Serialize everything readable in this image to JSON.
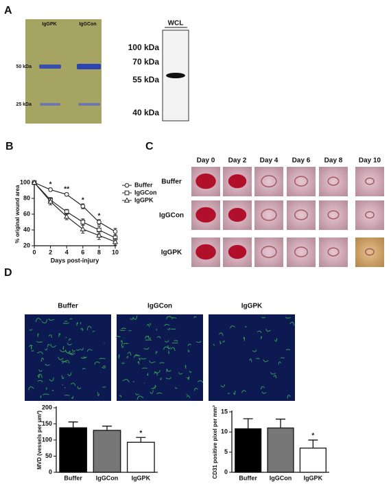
{
  "panels": {
    "a": "A",
    "b": "B",
    "c": "C",
    "d": "D"
  },
  "gel": {
    "lanes": [
      "IgGPK",
      "IgGCon"
    ],
    "markers": [
      "50 kDa",
      "25 kDa"
    ]
  },
  "blot": {
    "lane": "WCL",
    "markers": [
      "100 kDa",
      "70 kDa",
      "55 kDa",
      "40 kDa"
    ]
  },
  "photos": {
    "columns": [
      "Day 0",
      "Day 2",
      "Day 4",
      "Day 6",
      "Day 8",
      "Day 10"
    ],
    "rows": [
      "Buffer",
      "IgGCon",
      "IgGPK"
    ]
  },
  "micrographs": {
    "titles": [
      "Buffer",
      "IgGCon",
      "IgGPK"
    ]
  },
  "chart_data": [
    {
      "type": "line",
      "ylabel": "% original wound area",
      "xlabel": "Days post-injury",
      "x": [
        0,
        2,
        4,
        6,
        8,
        10
      ],
      "xlim": [
        0,
        10
      ],
      "xticks": [
        0,
        2,
        4,
        6,
        8,
        10
      ],
      "ylim": [
        20,
        100
      ],
      "yticks": [
        20,
        40,
        60,
        80,
        100
      ],
      "series": [
        {
          "name": "Buffer",
          "color": "#222222",
          "marker": "circle",
          "values": [
            100,
            91,
            85,
            70,
            50,
            38
          ],
          "errors": [
            1,
            2,
            2,
            3,
            3,
            4
          ]
        },
        {
          "name": "IgGCon",
          "color": "#222222",
          "marker": "square",
          "values": [
            100,
            78,
            63,
            50,
            40,
            30
          ],
          "errors": [
            1,
            3,
            3,
            4,
            5,
            4
          ]
        },
        {
          "name": "IgGPK",
          "color": "#222222",
          "marker": "triangle",
          "values": [
            100,
            76,
            57,
            41,
            33,
            25
          ],
          "errors": [
            1,
            4,
            4,
            5,
            5,
            4
          ]
        }
      ],
      "annotations": [
        {
          "x": 2,
          "text": "*"
        },
        {
          "x": 4,
          "text": "**"
        },
        {
          "x": 6,
          "text": "*"
        },
        {
          "x": 8,
          "text": "*"
        }
      ],
      "legend": "top-right"
    },
    {
      "type": "bar",
      "ylabel": "MVD (vessels per μm²)",
      "categories": [
        "Buffer",
        "IgGCon",
        "IgGPK"
      ],
      "values": [
        138,
        130,
        93
      ],
      "errors": [
        18,
        13,
        15
      ],
      "colors": [
        "#000000",
        "#777777",
        "#ffffff"
      ],
      "ylim": [
        0,
        200
      ],
      "yticks": [
        0,
        50,
        100,
        150,
        200
      ],
      "annotations": [
        {
          "category": "IgGPK",
          "text": "*"
        }
      ]
    },
    {
      "type": "bar",
      "ylabel": "CD31 positive pixel per mm²",
      "categories": [
        "Buffer",
        "IgGCon",
        "IgGPK"
      ],
      "values": [
        10.8,
        11,
        6
      ],
      "errors": [
        2.5,
        2.2,
        2
      ],
      "colors": [
        "#000000",
        "#777777",
        "#ffffff"
      ],
      "ylim": [
        0,
        15
      ],
      "yticks": [
        0,
        5,
        10,
        15
      ],
      "annotations": [
        {
          "category": "IgGPK",
          "text": "*"
        }
      ]
    }
  ]
}
